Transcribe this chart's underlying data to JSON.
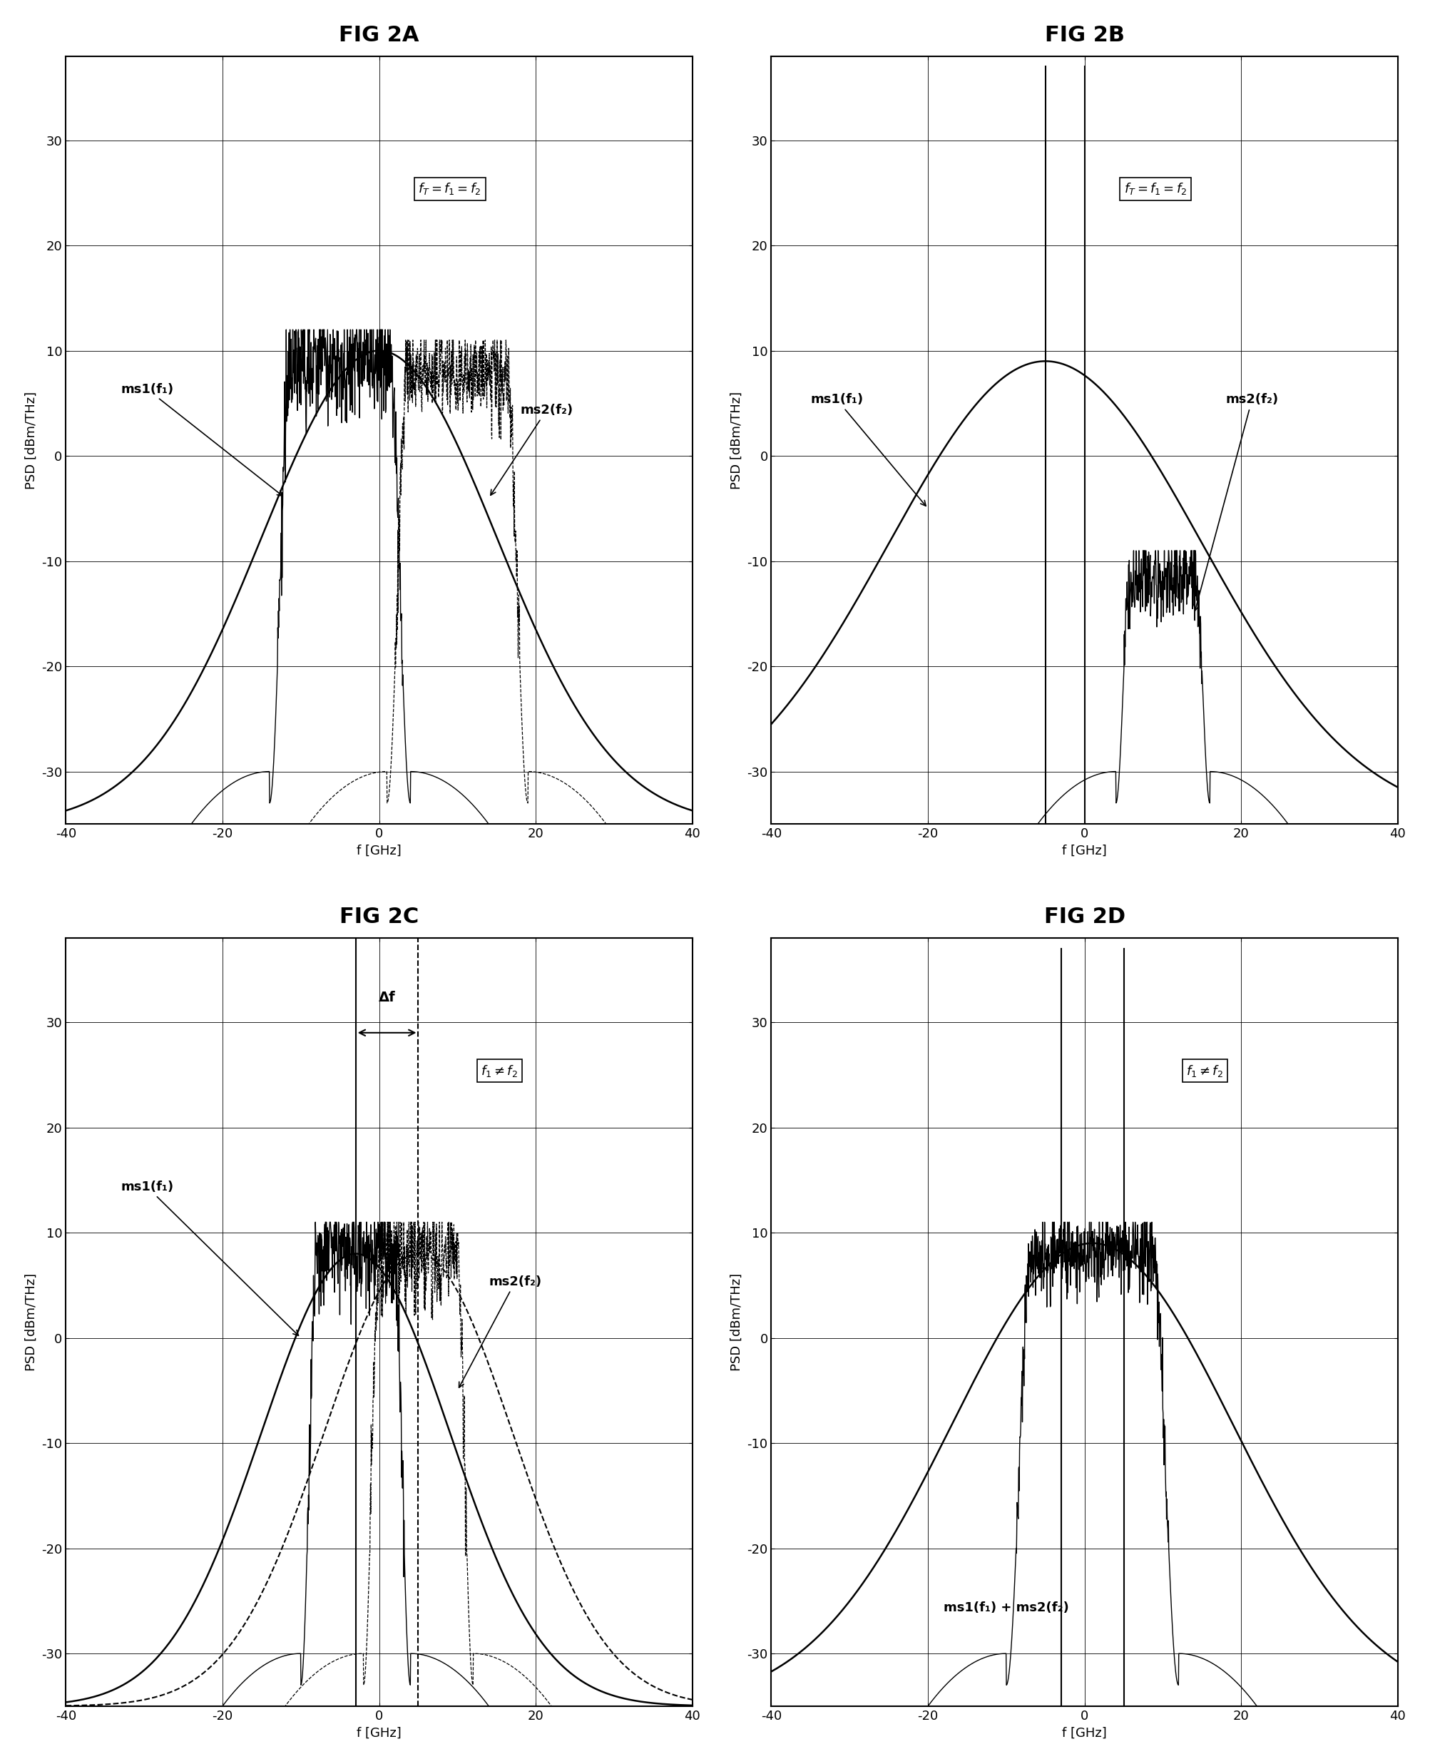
{
  "fig_titles": [
    "FIG 2A",
    "FIG 2B",
    "FIG 2C",
    "FIG 2D"
  ],
  "xlabel": "f [GHz]",
  "ylabel": "PSD [dBm/THz]",
  "xlim": [
    -40,
    40
  ],
  "ylim": [
    -35,
    38
  ],
  "yticks": [
    -30,
    -20,
    -10,
    0,
    10,
    20,
    30
  ],
  "xticks": [
    -40,
    -20,
    0,
    20,
    40
  ],
  "xtick_labels": [
    "-40",
    "-20",
    "0",
    "20",
    "40"
  ],
  "ytick_labels": [
    "-30",
    "-20",
    "-10",
    "0",
    "10",
    "20",
    "30"
  ],
  "background": "#ffffff"
}
